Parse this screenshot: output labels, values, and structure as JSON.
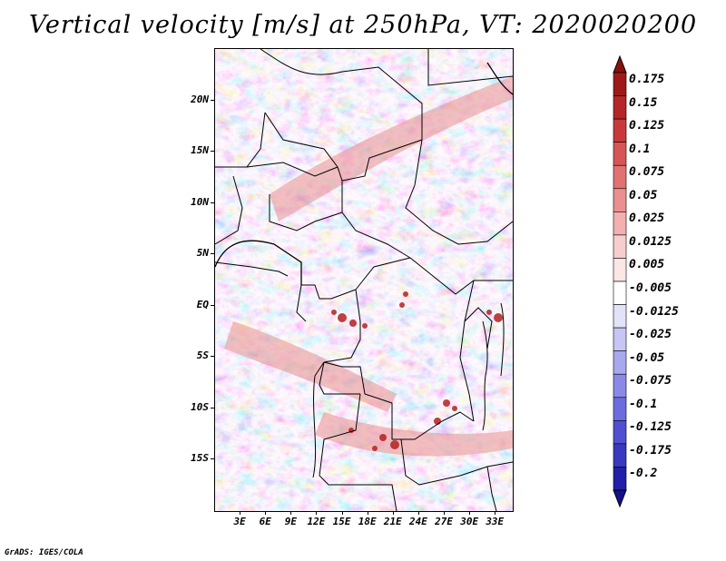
{
  "title": "Vertical velocity [m/s] at 250hPa, VT: 2020020200",
  "map": {
    "lon_range": [
      0,
      35
    ],
    "lat_range": [
      -20,
      25
    ],
    "lat_ticks": [
      {
        "label": "20N",
        "lat": 20
      },
      {
        "label": "15N",
        "lat": 15
      },
      {
        "label": "10N",
        "lat": 10
      },
      {
        "label": "5N",
        "lat": 5
      },
      {
        "label": "EQ",
        "lat": 0
      },
      {
        "label": "5S",
        "lat": -5
      },
      {
        "label": "10S",
        "lat": -10
      },
      {
        "label": "15S",
        "lat": -15
      }
    ],
    "lon_ticks": [
      {
        "label": "3E",
        "lon": 3
      },
      {
        "label": "6E",
        "lon": 6
      },
      {
        "label": "9E",
        "lon": 9
      },
      {
        "label": "12E",
        "lon": 12
      },
      {
        "label": "15E",
        "lon": 15
      },
      {
        "label": "18E",
        "lon": 18
      },
      {
        "label": "21E",
        "lon": 21
      },
      {
        "label": "24E",
        "lon": 24
      },
      {
        "label": "27E",
        "lon": 27
      },
      {
        "label": "30E",
        "lon": 30
      },
      {
        "label": "33E",
        "lon": 33
      }
    ]
  },
  "colorbar": {
    "levels": [
      {
        "label": "0.175",
        "color": "#9e1a1a"
      },
      {
        "label": "0.15",
        "color": "#b52626"
      },
      {
        "label": "0.125",
        "color": "#c83a3a"
      },
      {
        "label": "0.1",
        "color": "#d65555"
      },
      {
        "label": "0.075",
        "color": "#e07272"
      },
      {
        "label": "0.05",
        "color": "#ea9090"
      },
      {
        "label": "0.025",
        "color": "#f2b0b0"
      },
      {
        "label": "0.0125",
        "color": "#f8cdcd"
      },
      {
        "label": "0.005",
        "color": "#fce6e6"
      },
      {
        "label": "-0.005",
        "color": "#ffffff"
      },
      {
        "label": "-0.0125",
        "color": "#e2e2f8"
      },
      {
        "label": "-0.025",
        "color": "#c6c6f4"
      },
      {
        "label": "-0.05",
        "color": "#a8a8ee"
      },
      {
        "label": "-0.075",
        "color": "#8a8ae6"
      },
      {
        "label": "-0.1",
        "color": "#6c6cde"
      },
      {
        "label": "-0.125",
        "color": "#5050d0"
      },
      {
        "label": "-0.175",
        "color": "#3838c0"
      },
      {
        "label": "-0.2",
        "color": "#2020a8"
      }
    ],
    "top_arrow_color": "#8a1010",
    "bottom_arrow_color": "#12128e"
  },
  "footer": "GrADS: IGES/COLA"
}
